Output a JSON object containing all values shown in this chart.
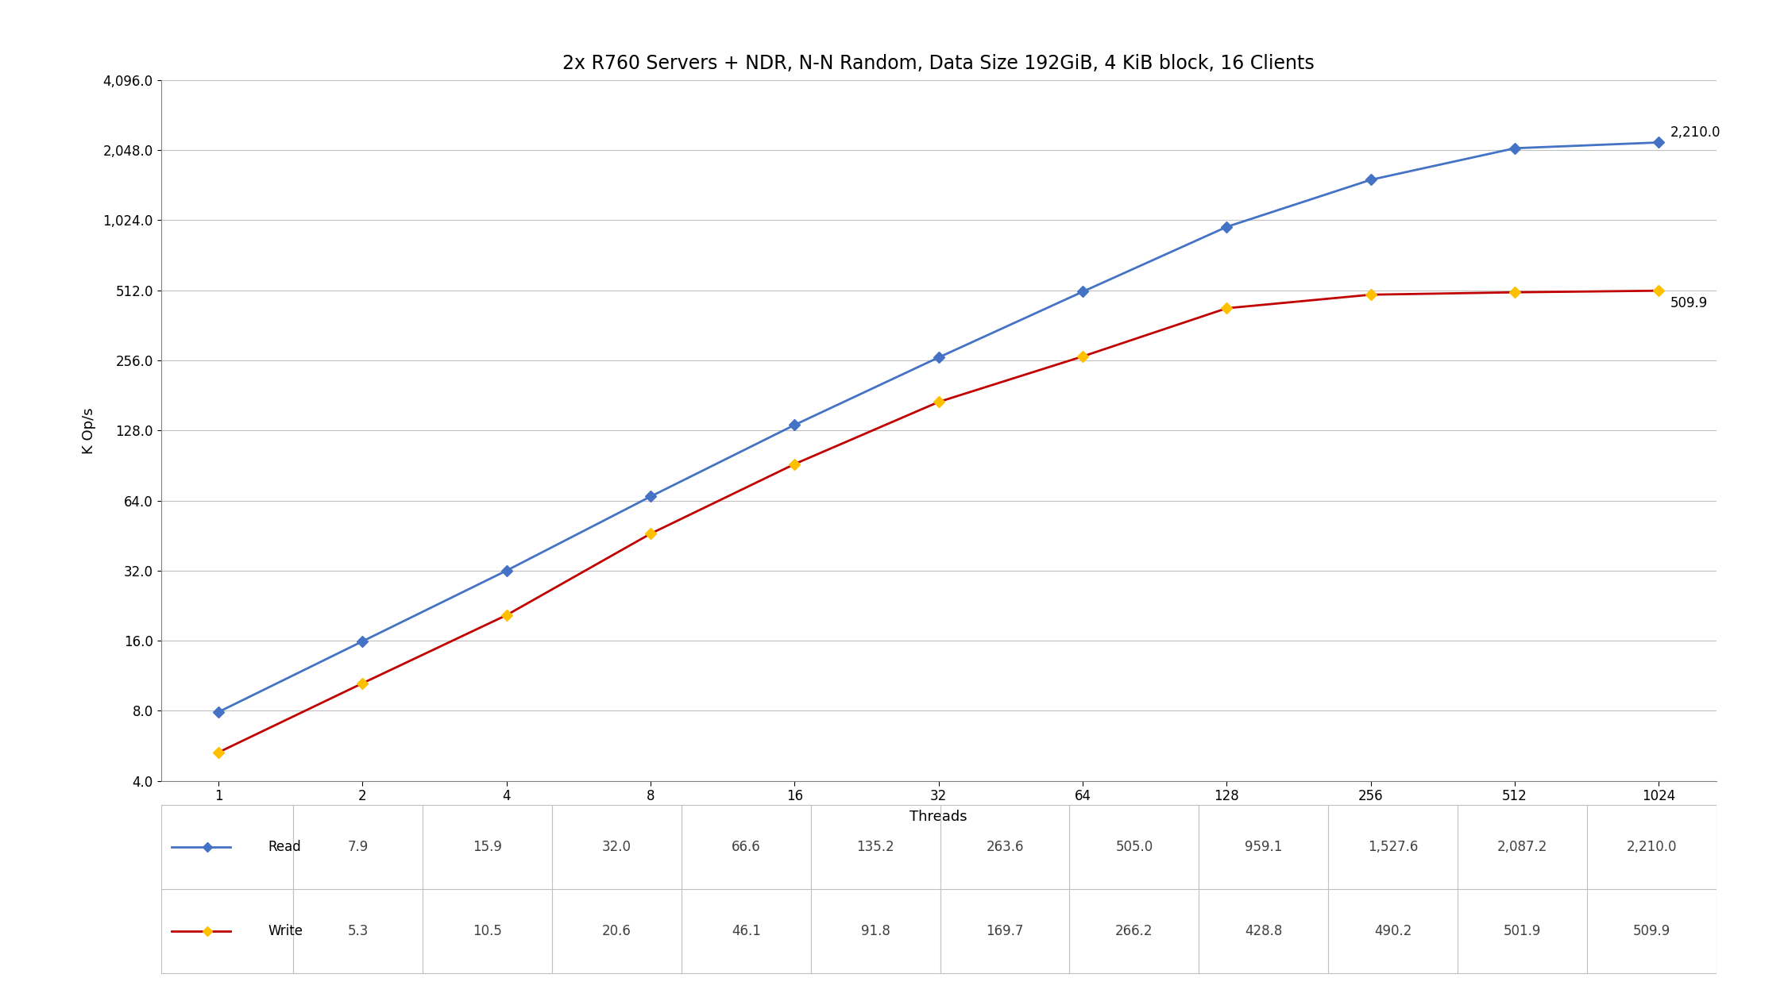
{
  "title": "2x R760 Servers + NDR, N-N Random, Data Size 192GiB, 4 KiB block, 16 Clients",
  "xlabel": "Threads",
  "ylabel": "K Op/s",
  "threads": [
    1,
    2,
    4,
    8,
    16,
    32,
    64,
    128,
    256,
    512,
    1024
  ],
  "read_values": [
    7.9,
    15.9,
    32.0,
    66.6,
    135.2,
    263.6,
    505.0,
    959.1,
    1527.6,
    2087.2,
    2210.0
  ],
  "write_values": [
    5.3,
    10.5,
    20.6,
    46.1,
    91.8,
    169.7,
    266.2,
    428.8,
    490.2,
    501.9,
    509.9
  ],
  "read_line_color": "#4472C4",
  "read_marker_color": "#4472C4",
  "write_line_color": "#C00000",
  "write_marker_color": "#FFC000",
  "read_label": "Read",
  "write_label": "Write",
  "read_last_annotation": "2,210.0",
  "write_last_annotation": "509.9",
  "background_color": "#FFFFFF",
  "grid_color": "#C0C0C0",
  "title_fontsize": 17,
  "axis_label_fontsize": 13,
  "tick_fontsize": 12,
  "legend_fontsize": 12,
  "annotation_fontsize": 12,
  "table_threads": [
    "1",
    "2",
    "4",
    "8",
    "16",
    "32",
    "64",
    "128",
    "256",
    "512",
    "1024"
  ],
  "table_read": [
    "7.9",
    "15.9",
    "32.0",
    "66.6",
    "135.2",
    "263.6",
    "505.0",
    "959.1",
    "1,527.6",
    "2,087.2",
    "2,210.0"
  ],
  "table_write": [
    "5.3",
    "10.5",
    "20.6",
    "46.1",
    "91.8",
    "169.7",
    "266.2",
    "428.8",
    "490.2",
    "501.9",
    "509.9"
  ],
  "ylim_min": 4.0,
  "ylim_max": 4096.0,
  "yticks": [
    4.0,
    8.0,
    16.0,
    32.0,
    64.0,
    128.0,
    256.0,
    512.0,
    1024.0,
    2048.0,
    4096.0
  ],
  "ytick_labels": [
    "4.0",
    "8.0",
    "16.0",
    "32.0",
    "64.0",
    "128.0",
    "256.0",
    "512.0",
    "1,024.0",
    "2,048.0",
    "4,096.0"
  ]
}
